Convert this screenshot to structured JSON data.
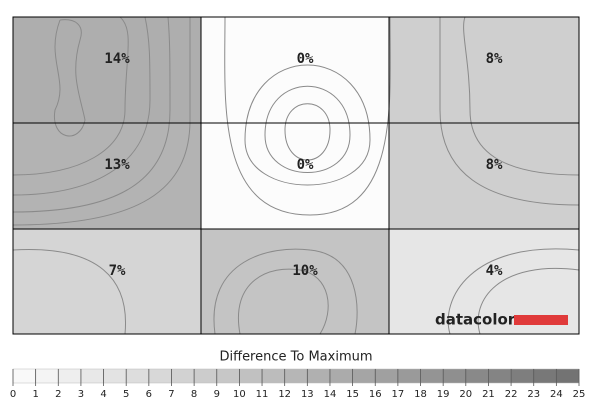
{
  "chart_data": {
    "type": "uniformity",
    "values": [
      [
        14,
        0,
        8
      ],
      [
        13,
        0,
        8
      ],
      [
        7,
        10,
        4
      ]
    ],
    "value_labels": [
      [
        "14%",
        "0%",
        "8%"
      ],
      [
        "13%",
        "0%",
        "8%"
      ],
      [
        "7%",
        "10%",
        "4%"
      ]
    ],
    "colorbar_title": "Difference To Maximum",
    "clim": [
      0,
      25
    ],
    "cticks": [
      0,
      1,
      2,
      3,
      4,
      5,
      6,
      7,
      8,
      9,
      10,
      11,
      12,
      13,
      14,
      15,
      16,
      17,
      18,
      19,
      20,
      21,
      22,
      23,
      24,
      25
    ]
  },
  "logo": "datacolor"
}
